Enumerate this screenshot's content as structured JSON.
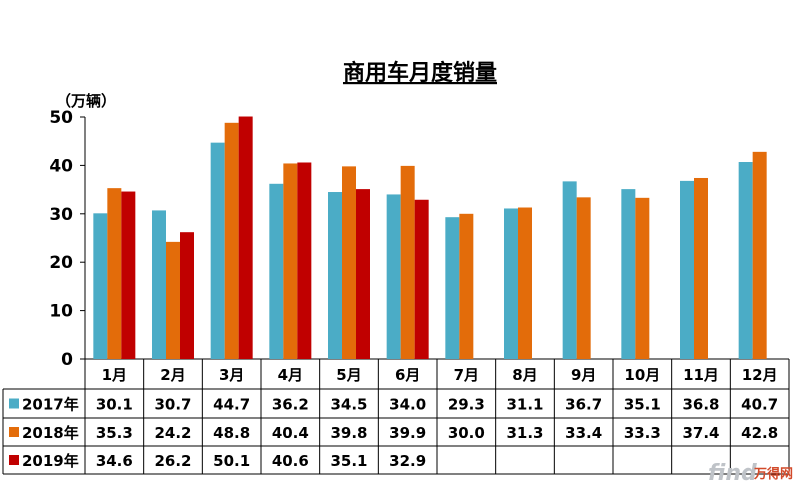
{
  "chart_data": {
    "type": "bar",
    "title": "商用车月度销量",
    "ylabel": "（万辆）",
    "ylim": [
      0,
      50
    ],
    "yticks": [
      0,
      10,
      20,
      30,
      40,
      50
    ],
    "categories": [
      "1月",
      "2月",
      "3月",
      "4月",
      "5月",
      "6月",
      "7月",
      "8月",
      "9月",
      "10月",
      "11月",
      "12月"
    ],
    "series": [
      {
        "name": "2017年",
        "color": "#4bacc6",
        "values": [
          30.1,
          30.7,
          44.7,
          36.2,
          34.5,
          34.0,
          29.3,
          31.1,
          36.7,
          35.1,
          36.8,
          40.7
        ]
      },
      {
        "name": "2018年",
        "color": "#e36c0a",
        "values": [
          35.3,
          24.2,
          48.8,
          40.4,
          39.8,
          39.9,
          30.0,
          31.3,
          33.4,
          33.3,
          37.4,
          42.8
        ]
      },
      {
        "name": "2019年",
        "color": "#c00000",
        "values": [
          34.6,
          26.2,
          50.1,
          40.6,
          35.1,
          32.9,
          null,
          null,
          null,
          null,
          null,
          null
        ]
      }
    ],
    "grid": false,
    "legend": "data-table"
  },
  "watermark": {
    "latin": "find",
    "cn": "万得网"
  }
}
